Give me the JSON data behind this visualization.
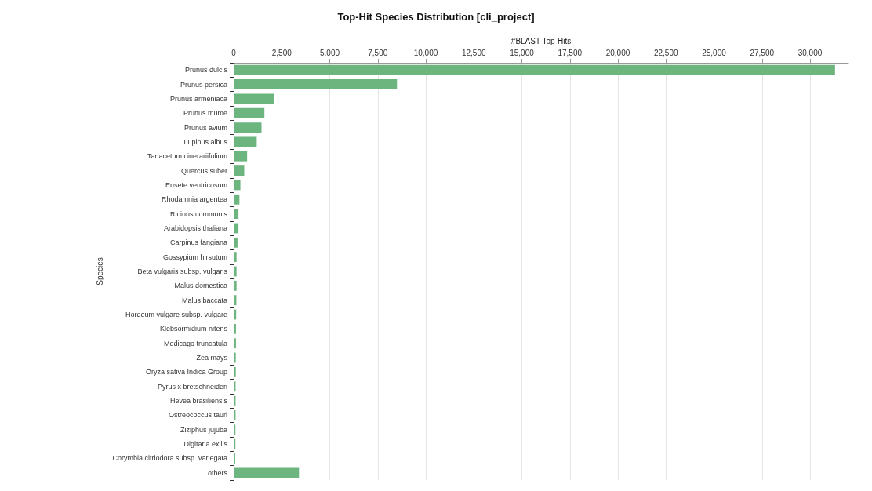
{
  "chart_data": {
    "type": "bar",
    "orientation": "horizontal",
    "title": "Top-Hit Species Distribution [cli_project]",
    "xlabel": "#BLAST Top-Hits",
    "ylabel": "Species",
    "categories": [
      "Prunus dulcis",
      "Prunus persica",
      "Prunus armeniaca",
      "Prunus mume",
      "Prunus avium",
      "Lupinus albus",
      "Tanacetum cinerariifolium",
      "Quercus suber",
      "Ensete ventricosum",
      "Rhodamnia argentea",
      "Ricinus communis",
      "Arabidopsis thaliana",
      "Carpinus fangiana",
      "Gossypium hirsutum",
      "Beta vulgaris subsp. vulgaris",
      "Malus domestica",
      "Malus baccata",
      "Hordeum vulgare subsp. vulgare",
      "Klebsormidium nitens",
      "Medicago truncatula",
      "Zea mays",
      "Oryza sativa Indica Group",
      "Pyrus x bretschneideri",
      "Hevea brasiliensis",
      "Ostreococcus tauri",
      "Ziziphus jujuba",
      "Digitaria exilis",
      "Corymbia citriodora subsp. variegata",
      "others"
    ],
    "values": [
      31300,
      8500,
      2100,
      1600,
      1450,
      1200,
      700,
      550,
      350,
      300,
      250,
      250,
      200,
      150,
      150,
      150,
      140,
      130,
      120,
      120,
      110,
      110,
      100,
      100,
      100,
      90,
      90,
      80,
      3400
    ],
    "color": "#6db57f",
    "xlim": [
      0,
      32000
    ],
    "xticks": [
      {
        "value": 0,
        "label": "0"
      },
      {
        "value": 2500,
        "label": "2,500"
      },
      {
        "value": 5000,
        "label": "5,000"
      },
      {
        "value": 7500,
        "label": "7,500"
      },
      {
        "value": 10000,
        "label": "10,000"
      },
      {
        "value": 12500,
        "label": "12,500"
      },
      {
        "value": 15000,
        "label": "15,000"
      },
      {
        "value": 17500,
        "label": "17,500"
      },
      {
        "value": 20000,
        "label": "20,000"
      },
      {
        "value": 22500,
        "label": "22,500"
      },
      {
        "value": 25000,
        "label": "25,000"
      },
      {
        "value": 27500,
        "label": "27,500"
      },
      {
        "value": 30000,
        "label": "30,000"
      }
    ],
    "grid": "x"
  }
}
